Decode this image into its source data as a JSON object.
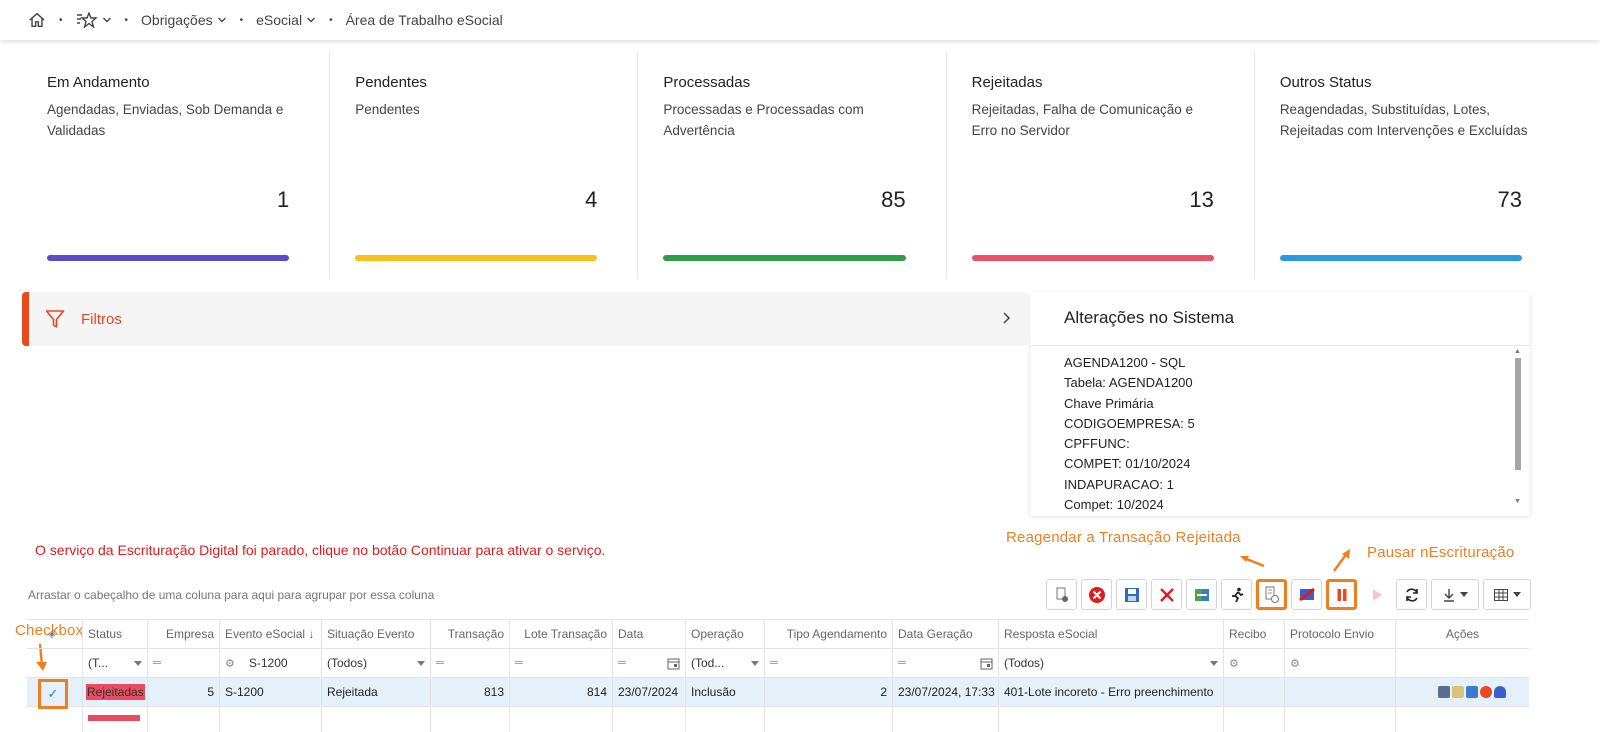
{
  "breadcrumb": {
    "items": [
      "Obrigações",
      "eSocial",
      "Área de Trabalho eSocial"
    ]
  },
  "cards": [
    {
      "title": "Em Andamento",
      "desc": "Agendadas, Enviadas, Sob Demanda e Validadas",
      "count": "1",
      "color": "#5b4dc7"
    },
    {
      "title": "Pendentes",
      "desc": "Pendentes",
      "count": "4",
      "color": "#f7c21b"
    },
    {
      "title": "Processadas",
      "desc": "Processadas e Processadas com Advertência",
      "count": "85",
      "color": "#2e9d45"
    },
    {
      "title": "Rejeitadas",
      "desc": "Rejeitadas, Falha de Comunicação e Erro no Servidor",
      "count": "13",
      "color": "#ea4f67"
    },
    {
      "title": "Outros Status",
      "desc": "Reagendadas, Substituídas, Lotes, Rejeitadas com Intervenções e Excluídas",
      "count": "73",
      "color": "#2b9ae6"
    }
  ],
  "filters": {
    "label": "Filtros"
  },
  "changes": {
    "title": "Alterações no Sistema",
    "lines": [
      "AGENDA1200 - SQL",
      "Tabela: AGENDA1200",
      "Chave Primária",
      "CODIGOEMPRESA: 5",
      "CPFFUNC:",
      "COMPET: 01/10/2024",
      "INDAPURACAO: 1",
      "Compet: 10/2024"
    ]
  },
  "warning": "O serviço da Escrituração Digital foi parado, clique no botão Continuar para ativar o serviço.",
  "annotations": {
    "reagendar": "Reagendar a Transação Rejeitada",
    "pausar": "Pausar nEscrituração",
    "checkbox": "Checkbox"
  },
  "grid": {
    "drag_hint": "Arrastar o cabeçalho de uma coluna para aqui para agrupar por essa coluna",
    "headers": [
      "Status",
      "Empresa",
      "Evento eSocial ↓",
      "Situação Evento",
      "Transação",
      "Lote Transação",
      "Data",
      "Operação",
      "Tipo Agendamento",
      "Data Geração",
      "Resposta eSocial",
      "Recibo",
      "Protocolo Envio",
      "Ações"
    ],
    "filters": {
      "status": "(T...",
      "evento": "S-1200",
      "situacao": "(Todos)",
      "operacao": "(Tod...",
      "resposta": "(Todos)"
    },
    "row": {
      "status": "Rejeitadas",
      "empresa": "5",
      "evento": "S-1200",
      "situacao": "Rejeitada",
      "transacao": "813",
      "lote": "814",
      "data": "23/07/2024",
      "operacao": "Inclusão",
      "tipo": "2",
      "data_geracao": "23/07/2024, 17:33",
      "resposta": "401-Lote incoreto - Erro preenchimento"
    }
  }
}
